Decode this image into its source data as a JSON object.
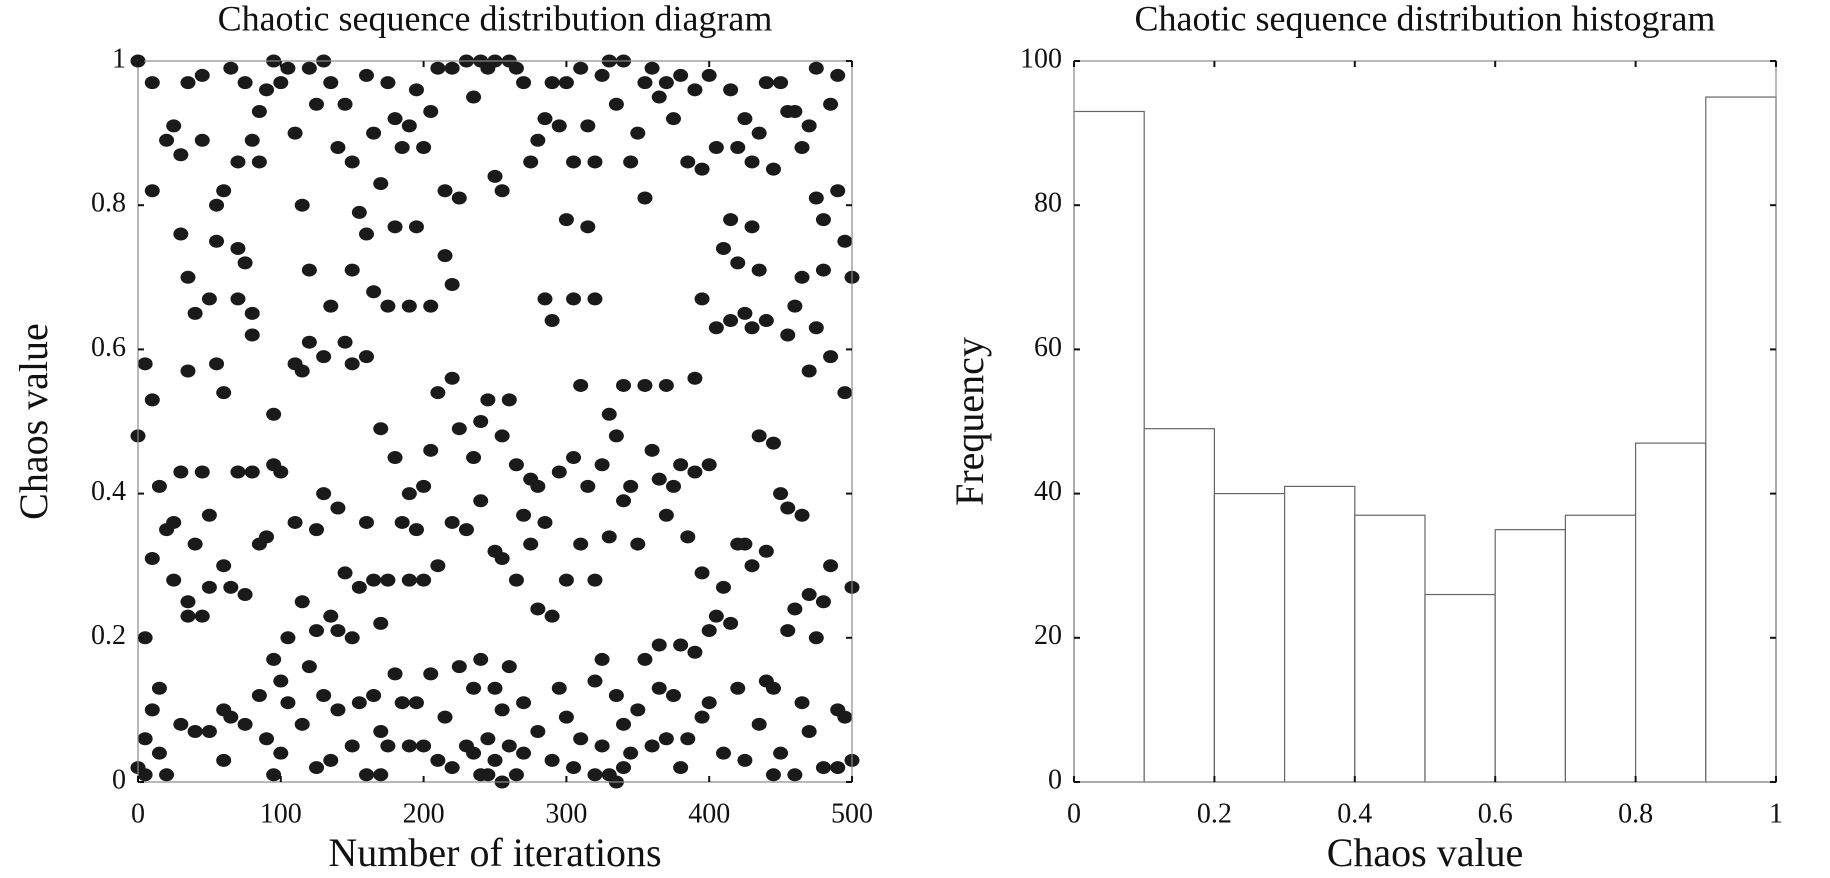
{
  "chart_data": [
    {
      "type": "scatter",
      "title": "Chaotic sequence distribution diagram",
      "x_label": "Number of iterations",
      "y_label": "Chaos value",
      "color": "#1a1a1a",
      "xlim": [
        0,
        500
      ],
      "xticks": [
        0,
        100,
        200,
        300,
        400,
        500
      ],
      "ylim": [
        0,
        1
      ],
      "yticks": [
        0,
        0.2,
        0.4,
        0.6,
        0.8,
        1
      ],
      "x": [
        0,
        0,
        0,
        5,
        5,
        5,
        5,
        10,
        10,
        10,
        10,
        10,
        15,
        15,
        15,
        20,
        20,
        20,
        25,
        25,
        25,
        30,
        30,
        30,
        30,
        35,
        35,
        35,
        35,
        35,
        40,
        40,
        40,
        45,
        45,
        45,
        45,
        50,
        50,
        50,
        50,
        55,
        55,
        55,
        60,
        60,
        60,
        60,
        60,
        65,
        65,
        65,
        70,
        70,
        70,
        70,
        75,
        75,
        75,
        75,
        80,
        80,
        80,
        80,
        85,
        85,
        85,
        85,
        90,
        90,
        90,
        95,
        95,
        95,
        95,
        95,
        100,
        100,
        100,
        100,
        105,
        105,
        105,
        110,
        110,
        110,
        115,
        115,
        115,
        115,
        120,
        120,
        120,
        120,
        125,
        125,
        125,
        125,
        130,
        130,
        130,
        130,
        135,
        135,
        135,
        135,
        140,
        140,
        140,
        140,
        145,
        145,
        145,
        150,
        150,
        150,
        150,
        150,
        155,
        155,
        155,
        160,
        160,
        160,
        160,
        160,
        165,
        165,
        165,
        165,
        170,
        170,
        170,
        170,
        170,
        175,
        175,
        175,
        175,
        180,
        180,
        180,
        180,
        185,
        185,
        185,
        190,
        190,
        190,
        190,
        190,
        195,
        195,
        195,
        195,
        200,
        200,
        200,
        200,
        205,
        205,
        205,
        205,
        210,
        210,
        210,
        210,
        215,
        215,
        215,
        220,
        220,
        220,
        220,
        220,
        225,
        225,
        225,
        230,
        230,
        230,
        235,
        235,
        235,
        235,
        240,
        240,
        240,
        240,
        240,
        245,
        245,
        245,
        245,
        250,
        250,
        250,
        250,
        250,
        255,
        255,
        255,
        255,
        255,
        260,
        260,
        260,
        260,
        265,
        265,
        265,
        265,
        270,
        270,
        270,
        270,
        275,
        275,
        275,
        280,
        280,
        280,
        280,
        285,
        285,
        285,
        290,
        290,
        290,
        290,
        295,
        295,
        295,
        300,
        300,
        300,
        300,
        305,
        305,
        305,
        305,
        310,
        310,
        310,
        310,
        315,
        315,
        315,
        320,
        320,
        320,
        320,
        320,
        325,
        325,
        325,
        325,
        330,
        330,
        330,
        330,
        335,
        335,
        335,
        335,
        340,
        340,
        340,
        340,
        340,
        345,
        345,
        345,
        350,
        350,
        350,
        355,
        355,
        355,
        355,
        360,
        360,
        360,
        365,
        365,
        365,
        365,
        370,
        370,
        370,
        370,
        375,
        375,
        375,
        380,
        380,
        380,
        380,
        385,
        385,
        385,
        390,
        390,
        390,
        390,
        395,
        395,
        395,
        395,
        400,
        400,
        400,
        400,
        405,
        405,
        405,
        410,
        410,
        410,
        415,
        415,
        415,
        415,
        420,
        420,
        420,
        420,
        425,
        425,
        425,
        425,
        430,
        430,
        430,
        430,
        435,
        435,
        435,
        435,
        440,
        440,
        440,
        440,
        445,
        445,
        445,
        445,
        450,
        450,
        450,
        455,
        455,
        455,
        455,
        460,
        460,
        460,
        460,
        465,
        465,
        465,
        465,
        470,
        470,
        470,
        470,
        475,
        475,
        475,
        475,
        480,
        480,
        480,
        480,
        485,
        485,
        485,
        490,
        490,
        490,
        490,
        495,
        495,
        495,
        500,
        500,
        500
      ],
      "values": [
        0.48,
        1,
        0.02,
        0.2,
        0.58,
        0.01,
        0.06,
        0.97,
        0.82,
        0.53,
        0.31,
        0.1,
        0.13,
        0.04,
        0.41,
        0.89,
        0.35,
        0.01,
        0.91,
        0.28,
        0.36,
        0.76,
        0.87,
        0.43,
        0.08,
        0.97,
        0.7,
        0.57,
        0.25,
        0.23,
        0.65,
        0.33,
        0.07,
        0.98,
        0.89,
        0.43,
        0.23,
        0.67,
        0.37,
        0.27,
        0.07,
        0.8,
        0.75,
        0.58,
        0.82,
        0.54,
        0.3,
        0.1,
        0.03,
        0.99,
        0.27,
        0.09,
        0.86,
        0.74,
        0.67,
        0.43,
        0.97,
        0.72,
        0.26,
        0.08,
        0.89,
        0.62,
        0.65,
        0.43,
        0.93,
        0.86,
        0.33,
        0.12,
        0.96,
        0.34,
        0.06,
        1,
        0.51,
        0.44,
        0.17,
        0.01,
        0.97,
        0.43,
        0.14,
        0.04,
        0.99,
        0.2,
        0.11,
        0.9,
        0.58,
        0.36,
        0.8,
        0.57,
        0.25,
        0.08,
        0.99,
        0.71,
        0.61,
        0.16,
        0.94,
        0.35,
        0.21,
        0.02,
        1,
        0.59,
        0.4,
        0.12,
        0.97,
        0.66,
        0.23,
        0.03,
        0.88,
        0.38,
        0.21,
        0.1,
        0.94,
        0.61,
        0.29,
        0.86,
        0.71,
        0.58,
        0.2,
        0.05,
        0.79,
        0.27,
        0.11,
        0.98,
        0.76,
        0.59,
        0.36,
        0.01,
        0.9,
        0.68,
        0.28,
        0.12,
        0.83,
        0.49,
        0.22,
        0.07,
        0.01,
        0.97,
        0.66,
        0.28,
        0.05,
        0.92,
        0.77,
        0.45,
        0.15,
        0.88,
        0.36,
        0.11,
        0.91,
        0.66,
        0.4,
        0.28,
        0.05,
        0.96,
        0.77,
        0.35,
        0.11,
        0.88,
        0.41,
        0.28,
        0.05,
        0.93,
        0.66,
        0.46,
        0.15,
        0.99,
        0.54,
        0.3,
        0.03,
        0.82,
        0.73,
        0.09,
        0.99,
        0.69,
        0.56,
        0.36,
        0.02,
        0.81,
        0.49,
        0.16,
        1,
        0.35,
        0.05,
        0.95,
        0.45,
        0.13,
        0.04,
        1,
        0.5,
        0.39,
        0.17,
        0.01,
        0.99,
        0.53,
        0.06,
        0.01,
        1,
        0.84,
        0.32,
        0.13,
        0.03,
        0.82,
        0.48,
        0.31,
        0.1,
        0,
        1,
        0.53,
        0.16,
        0.05,
        0.99,
        0.44,
        0.28,
        0.01,
        0.97,
        0.37,
        0.11,
        0.04,
        0.86,
        0.42,
        0.33,
        0.89,
        0.41,
        0.24,
        0.07,
        0.92,
        0.67,
        0.36,
        0.97,
        0.64,
        0.23,
        0.03,
        0.91,
        0.43,
        0.13,
        0.97,
        0.78,
        0.28,
        0.09,
        0.86,
        0.67,
        0.45,
        0.02,
        0.99,
        0.55,
        0.33,
        0.06,
        0.91,
        0.77,
        0.41,
        0.86,
        0.67,
        0.28,
        0.14,
        0.01,
        0.98,
        0.44,
        0.17,
        0.05,
        1,
        0.51,
        0.34,
        0.01,
        0.94,
        0.48,
        0.12,
        0,
        1,
        0.55,
        0.39,
        0.08,
        0.02,
        0.86,
        0.41,
        0.04,
        0.9,
        0.33,
        0.1,
        0.97,
        0.81,
        0.55,
        0.17,
        0.99,
        0.46,
        0.05,
        0.95,
        0.42,
        0.19,
        0.13,
        0.97,
        0.55,
        0.37,
        0.06,
        0.92,
        0.41,
        0.12,
        0.98,
        0.44,
        0.19,
        0.02,
        0.86,
        0.34,
        0.06,
        0.96,
        0.56,
        0.43,
        0.18,
        0.85,
        0.67,
        0.29,
        0.09,
        0.98,
        0.44,
        0.21,
        0.11,
        0.88,
        0.63,
        0.23,
        0.74,
        0.27,
        0.04,
        0.96,
        0.78,
        0.64,
        0.22,
        0.88,
        0.72,
        0.33,
        0.13,
        0.92,
        0.65,
        0.33,
        0.03,
        0.86,
        0.77,
        0.63,
        0.3,
        0.9,
        0.71,
        0.48,
        0.08,
        0.97,
        0.64,
        0.32,
        0.14,
        0.85,
        0.47,
        0.13,
        0.01,
        0.97,
        0.4,
        0.04,
        0.93,
        0.62,
        0.38,
        0.21,
        0.93,
        0.66,
        0.24,
        0.01,
        0.88,
        0.7,
        0.37,
        0.11,
        0.91,
        0.57,
        0.26,
        0.07,
        0.99,
        0.81,
        0.63,
        0.2,
        0.78,
        0.71,
        0.25,
        0.02,
        0.94,
        0.59,
        0.3,
        0.98,
        0.82,
        0.1,
        0.02,
        0.75,
        0.54,
        0.09,
        0.7,
        0.27,
        0.03
      ]
    },
    {
      "type": "histogram",
      "title": "Chaotic sequence distribution histogram",
      "x_label": "Chaos value",
      "y_label": "Frequency",
      "color": "#ffffff",
      "edgecolor": "#666666",
      "bins": [
        0,
        0.1,
        0.2,
        0.3,
        0.4,
        0.5,
        0.6,
        0.7,
        0.8,
        0.9,
        1
      ],
      "values": [
        93,
        49,
        40,
        41,
        37,
        26,
        35,
        37,
        47,
        95
      ],
      "xlim": [
        0,
        1
      ],
      "xticks": [
        0,
        0.2,
        0.4,
        0.6,
        0.8,
        1
      ],
      "ylim": [
        0,
        100
      ],
      "yticks": [
        0,
        20,
        40,
        60,
        80,
        100
      ]
    }
  ]
}
